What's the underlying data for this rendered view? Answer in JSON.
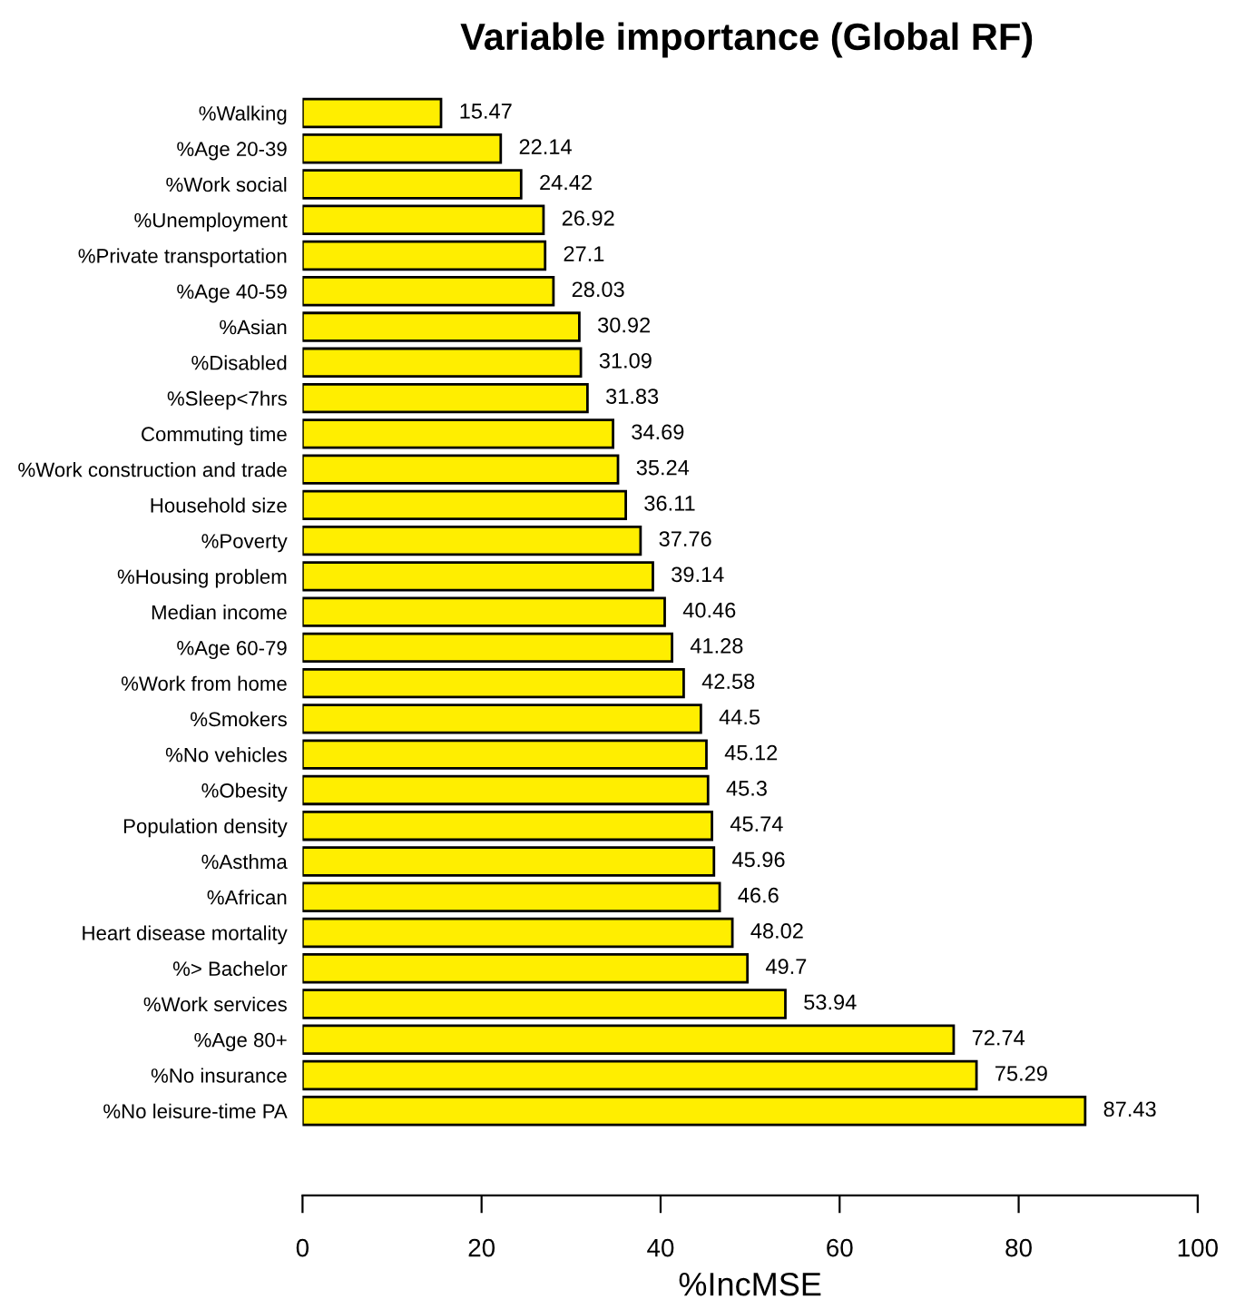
{
  "chart_data": {
    "type": "bar",
    "orientation": "horizontal",
    "title": "Variable importance (Global RF)",
    "xlabel": "%IncMSE",
    "categories": [
      "%Walking",
      "%Age 20-39",
      "%Work social",
      "%Unemployment",
      "%Private transportation",
      "%Age 40-59",
      "%Asian",
      "%Disabled",
      "%Sleep<7hrs",
      "Commuting time",
      "%Work construction and trade",
      "Household size",
      "%Poverty",
      "%Housing problem",
      "Median income",
      "%Age 60-79",
      "%Work from home",
      "%Smokers",
      "%No vehicles",
      "%Obesity",
      "Population density",
      "%Asthma",
      "%African",
      "Heart disease mortality",
      "%> Bachelor",
      "%Work services",
      "%Age 80+",
      "%No insurance",
      "%No leisure-time PA"
    ],
    "values": [
      15.47,
      22.14,
      24.42,
      26.92,
      27.1,
      28.03,
      30.92,
      31.09,
      31.83,
      34.69,
      35.24,
      36.11,
      37.76,
      39.14,
      40.46,
      41.28,
      42.58,
      44.5,
      45.12,
      45.3,
      45.74,
      45.96,
      46.6,
      48.02,
      49.7,
      53.94,
      72.74,
      75.29,
      87.43
    ],
    "color": "#ffee00",
    "data_labels": true,
    "xlim": [
      0,
      100
    ],
    "xticks": [
      0,
      20,
      40,
      60,
      80,
      100
    ],
    "grid": false
  }
}
